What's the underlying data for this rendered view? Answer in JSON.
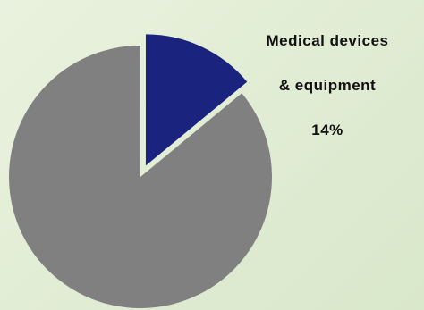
{
  "chart_data": {
    "type": "pie",
    "title": "",
    "slices": [
      {
        "name": "Medical devices & equipment",
        "value": 14,
        "color": "#1a237e",
        "exploded": true
      },
      {
        "name": "",
        "value": 86,
        "color": "#808080",
        "exploded": false
      }
    ],
    "labels": [
      {
        "line1": "Medical devices",
        "line2": "& equipment",
        "line3": "14%"
      }
    ]
  }
}
